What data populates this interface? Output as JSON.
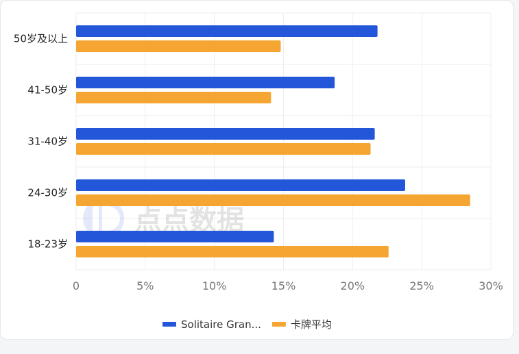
{
  "chart_data": {
    "type": "bar",
    "orientation": "horizontal",
    "categories": [
      "50岁及以上",
      "41-50岁",
      "31-40岁",
      "24-30岁",
      "18-23岁"
    ],
    "series": [
      {
        "name": "Solitaire Gran...",
        "color": "#2356d9",
        "values": [
          21.8,
          18.7,
          21.6,
          23.8,
          14.3
        ]
      },
      {
        "name": "卡牌平均",
        "color": "#f5a531",
        "values": [
          14.8,
          14.1,
          21.3,
          28.5,
          22.6
        ]
      }
    ],
    "xlim": [
      0,
      30
    ],
    "xticks": [
      "0",
      "5%",
      "10%",
      "15%",
      "20%",
      "25%",
      "30%"
    ],
    "xtick_values": [
      0,
      5,
      10,
      15,
      20,
      25,
      30
    ],
    "grid": true,
    "legend_position": "bottom"
  },
  "watermark": {
    "text": "点点数据",
    "logo_icon": "dd-logo-icon"
  }
}
